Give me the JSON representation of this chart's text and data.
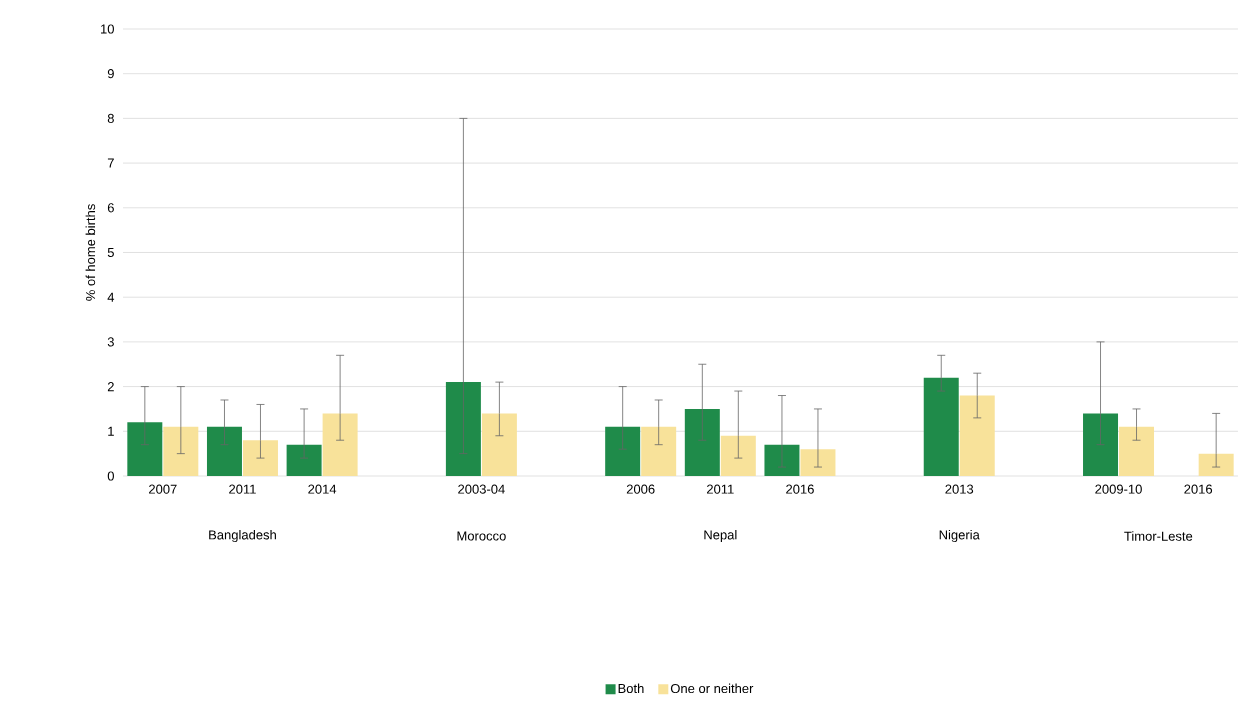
{
  "chart_data": {
    "type": "bar",
    "ylabel": "% of home births",
    "categories": [
      "2007",
      "2011",
      "2014",
      null,
      "2003-04",
      null,
      "2006",
      "2011",
      "2016",
      null,
      "2013",
      null,
      "2009-10",
      "2016"
    ],
    "annotations": [
      "Bangladesh",
      "Morocco",
      "Nepal",
      "Nigeria",
      "Timor-Leste"
    ],
    "series": [
      {
        "name": "Both",
        "color": "#1f8b4a",
        "values": [
          1.2,
          1.1,
          0.7,
          null,
          2.1,
          null,
          1.1,
          1.5,
          0.7,
          null,
          2.2,
          null,
          1.4,
          null
        ],
        "errors": [
          [
            0.7,
            2.0
          ],
          [
            0.7,
            1.7
          ],
          [
            0.4,
            1.5
          ],
          null,
          [
            0.5,
            8.0
          ],
          null,
          [
            0.6,
            2.0
          ],
          [
            0.8,
            2.5
          ],
          [
            0.2,
            1.8
          ],
          null,
          [
            1.9,
            2.7
          ],
          null,
          [
            0.7,
            3.0
          ],
          null
        ]
      },
      {
        "name": "One or neither",
        "color": "#f8e29a",
        "values": [
          1.1,
          0.8,
          1.4,
          null,
          1.4,
          null,
          1.1,
          0.9,
          0.6,
          null,
          1.8,
          null,
          1.1,
          0.5
        ],
        "errors": [
          [
            0.5,
            2.0
          ],
          [
            0.4,
            1.6
          ],
          [
            0.8,
            2.7
          ],
          null,
          [
            0.9,
            2.1
          ],
          null,
          [
            0.7,
            1.7
          ],
          [
            0.4,
            1.9
          ],
          [
            0.2,
            1.5
          ],
          null,
          [
            1.3,
            2.3
          ],
          null,
          [
            0.8,
            1.5
          ],
          [
            0.2,
            1.4
          ]
        ]
      }
    ],
    "ylim": [
      0,
      10
    ],
    "yticks": [
      0,
      1,
      2,
      3,
      4,
      5,
      6,
      7,
      8,
      9,
      10
    ],
    "grid": "y",
    "legend": "bottom"
  }
}
